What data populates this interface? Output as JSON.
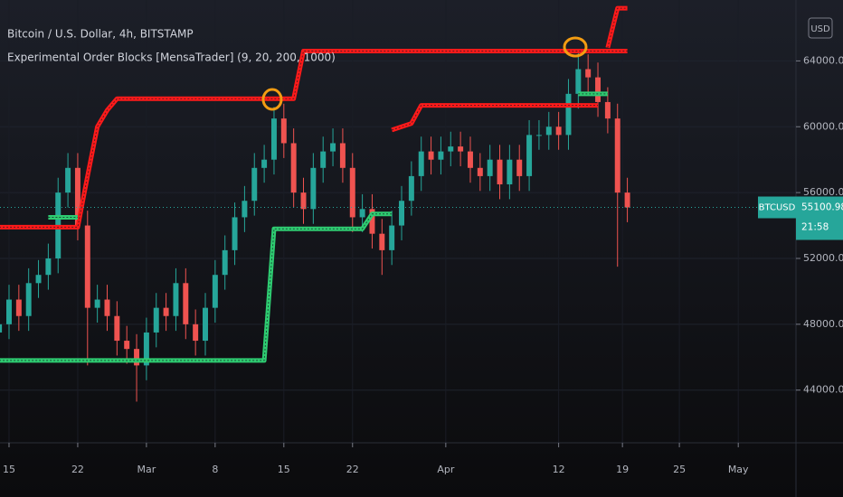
{
  "chart_data": {
    "type": "candlestick",
    "title": "Bitcoin / U.S. Dollar, 4h, BITSTAMP",
    "subtitle": "Experimental Order Blocks [MensaTrader] (9, 20, 200, 1000)",
    "currency": "USD",
    "symbol": "BTCUSD",
    "last_price": 55100.98,
    "countdown": "21:58",
    "up_color": "#26a69a",
    "down_color": "#ef5350",
    "xlim": [
      -0.92,
      80.18
    ],
    "ylim": [
      40800,
      67700
    ],
    "xticks": [
      {
        "value": 0,
        "label": "15"
      },
      {
        "value": 7,
        "label": "22"
      },
      {
        "value": 14,
        "label": "Mar"
      },
      {
        "value": 21,
        "label": "8"
      },
      {
        "value": 28,
        "label": "15"
      },
      {
        "value": 35,
        "label": "22"
      },
      {
        "value": 44.5,
        "label": "Apr"
      },
      {
        "value": 56,
        "label": "12"
      },
      {
        "value": 62.5,
        "label": "19"
      },
      {
        "value": 68.3,
        "label": "25"
      },
      {
        "value": 74.3,
        "label": "May"
      }
    ],
    "yticks": [
      {
        "value": 44000,
        "label": "44000.00"
      },
      {
        "value": 48000,
        "label": "48000.00"
      },
      {
        "value": 52000,
        "label": "52000.00"
      },
      {
        "value": 56000,
        "label": "56000.00"
      },
      {
        "value": 60000,
        "label": "60000.00"
      },
      {
        "value": 64000,
        "label": "64000.00"
      }
    ],
    "x": [
      -1,
      0,
      1,
      2,
      3,
      4,
      5,
      6,
      7,
      8,
      9,
      10,
      11,
      12,
      13,
      14,
      15,
      16,
      17,
      18,
      19,
      20,
      21,
      22,
      23,
      24,
      25,
      26,
      27,
      28,
      29,
      30,
      31,
      32,
      33,
      34,
      35,
      36,
      37,
      38,
      39,
      40,
      41,
      42,
      43,
      44,
      45,
      46,
      47,
      48,
      49,
      50,
      51,
      52,
      53,
      54,
      55,
      56,
      57,
      58,
      59,
      60,
      61,
      62,
      63
    ],
    "open": [
      47500,
      48000,
      49500,
      48500,
      50500,
      51000,
      52000,
      56000,
      57500,
      54000,
      49000,
      49500,
      48500,
      47000,
      46500,
      45500,
      47500,
      49000,
      48500,
      50500,
      48000,
      47000,
      49000,
      51000,
      52500,
      54500,
      55500,
      57500,
      58000,
      60500,
      59000,
      56000,
      55000,
      57500,
      58500,
      59000,
      57500,
      54500,
      55000,
      53500,
      52500,
      54000,
      55500,
      57000,
      58500,
      58000,
      58500,
      58800,
      58500,
      57500,
      57000,
      58000,
      56500,
      58000,
      57000,
      59500,
      59500,
      60000,
      59500,
      62000,
      63500,
      63000,
      61500,
      60500,
      56000
    ],
    "high": [
      48900,
      50400,
      50400,
      51400,
      51900,
      52900,
      56900,
      58400,
      58400,
      54900,
      50400,
      50400,
      49400,
      47900,
      47400,
      48400,
      49900,
      49900,
      51400,
      51400,
      48900,
      49900,
      51900,
      53400,
      55400,
      56400,
      58400,
      58900,
      61200,
      61400,
      59900,
      56900,
      58400,
      59400,
      59900,
      59900,
      58400,
      55900,
      55900,
      54400,
      54900,
      56400,
      57900,
      59400,
      59400,
      59400,
      59700,
      59700,
      59400,
      58400,
      58900,
      58900,
      58900,
      58900,
      60400,
      60400,
      60900,
      60900,
      62900,
      64500,
      64400,
      63900,
      62400,
      61400,
      56900
    ],
    "low": [
      46600,
      47100,
      47600,
      47600,
      49600,
      50100,
      51100,
      55100,
      53100,
      45500,
      48100,
      47600,
      46100,
      45600,
      43300,
      44600,
      46600,
      47600,
      47600,
      47100,
      46100,
      46100,
      48100,
      50100,
      51600,
      53600,
      54600,
      56600,
      57100,
      58100,
      55100,
      54100,
      54100,
      56600,
      57600,
      56600,
      53600,
      53600,
      52600,
      51000,
      51600,
      53100,
      54600,
      56100,
      57100,
      57100,
      57600,
      57600,
      56600,
      56100,
      56100,
      55600,
      55600,
      56100,
      56100,
      58600,
      58600,
      58600,
      58600,
      61100,
      62100,
      60600,
      59600,
      51500,
      54200
    ],
    "close": [
      48000,
      49500,
      48500,
      50500,
      51000,
      52000,
      56000,
      57500,
      54000,
      49000,
      49500,
      48500,
      47000,
      46500,
      45500,
      47500,
      49000,
      48500,
      50500,
      48000,
      47000,
      49000,
      51000,
      52500,
      54500,
      55500,
      57500,
      58000,
      60500,
      59000,
      56000,
      55000,
      57500,
      58500,
      59000,
      57500,
      54500,
      55000,
      53500,
      52500,
      54000,
      55500,
      57000,
      58500,
      58000,
      58500,
      58800,
      58500,
      57500,
      57000,
      58000,
      56500,
      58000,
      57000,
      59500,
      59500,
      60000,
      59500,
      62000,
      63500,
      63000,
      61500,
      60500,
      56000,
      55100
    ],
    "blocks": [
      {
        "color": "#ff1a1a",
        "values": [
          53900,
          53900,
          53900,
          53900,
          53900,
          53900,
          53900,
          53900,
          53900,
          57000,
          60000,
          61000,
          61700,
          61700,
          61700,
          61700,
          61700,
          61700,
          61700,
          61700,
          61700,
          61700,
          61700,
          61700,
          61700,
          61700,
          61700,
          61700,
          61700,
          61700,
          61700,
          64600,
          64600,
          64600,
          64600,
          64600,
          64600,
          64600,
          64600,
          64600,
          64600,
          64600,
          64600,
          64600,
          64600,
          64600,
          64600,
          64600,
          64600,
          64600,
          64600,
          64600,
          64600,
          64600,
          64600,
          64600,
          64600,
          64600,
          64600,
          64600,
          64600,
          64600,
          64600,
          64600,
          64600
        ]
      },
      {
        "color": "#ff1a1a",
        "values": [
          null,
          null,
          null,
          null,
          null,
          null,
          null,
          null,
          null,
          null,
          null,
          null,
          null,
          null,
          null,
          null,
          null,
          null,
          null,
          null,
          null,
          null,
          null,
          null,
          null,
          null,
          null,
          null,
          null,
          null,
          null,
          null,
          null,
          null,
          null,
          null,
          null,
          null,
          null,
          null,
          59800,
          60000,
          60200,
          61300,
          61300,
          61300,
          61300,
          61300,
          61300,
          61300,
          61300,
          61300,
          61300,
          61300,
          61300,
          61300,
          61300,
          61300,
          61300,
          61300,
          61300,
          61300,
          null,
          null,
          null
        ]
      },
      {
        "color": "#ff1a1a",
        "values": [
          null,
          null,
          null,
          null,
          null,
          null,
          null,
          null,
          null,
          null,
          null,
          null,
          null,
          null,
          null,
          null,
          null,
          null,
          null,
          null,
          null,
          null,
          null,
          null,
          null,
          null,
          null,
          null,
          null,
          null,
          null,
          null,
          null,
          null,
          null,
          null,
          null,
          null,
          null,
          null,
          null,
          null,
          null,
          null,
          null,
          null,
          null,
          null,
          null,
          null,
          null,
          null,
          null,
          null,
          null,
          null,
          null,
          null,
          null,
          null,
          null,
          null,
          64800,
          67200,
          67200
        ]
      },
      {
        "color": "#2ecc71",
        "values": [
          45800,
          45800,
          45800,
          45800,
          45800,
          45800,
          45800,
          45800,
          45800,
          45800,
          45800,
          45800,
          45800,
          45800,
          45800,
          45800,
          45800,
          45800,
          45800,
          45800,
          45800,
          45800,
          45800,
          45800,
          45800,
          45800,
          45800,
          45800,
          53800,
          53800,
          53800,
          53800,
          53800,
          53800,
          53800,
          53800,
          53800,
          53800,
          54700,
          54700,
          54700,
          null,
          null,
          null,
          null,
          null,
          null,
          null,
          null,
          null,
          null,
          null,
          null,
          null,
          null,
          null,
          null,
          null,
          null,
          null,
          null,
          null,
          null,
          null,
          null
        ]
      },
      {
        "color": "#2ecc71",
        "values": [
          null,
          null,
          null,
          null,
          null,
          54500,
          54500,
          54500,
          54500,
          null,
          null,
          null,
          null,
          null,
          null,
          null,
          null,
          null,
          null,
          null,
          null,
          null,
          null,
          null,
          null,
          null,
          null,
          null,
          null,
          null,
          null,
          null,
          null,
          null,
          null,
          null,
          null,
          null,
          null,
          null,
          null,
          null,
          null,
          null,
          null,
          null,
          null,
          null,
          null,
          null,
          null,
          null,
          null,
          null,
          null,
          null,
          null,
          null,
          null,
          null,
          null,
          null,
          null,
          null,
          null
        ]
      },
      {
        "color": "#2ecc71",
        "values": [
          null,
          null,
          null,
          null,
          null,
          null,
          null,
          null,
          null,
          null,
          null,
          null,
          null,
          null,
          null,
          null,
          null,
          null,
          null,
          null,
          null,
          null,
          null,
          null,
          null,
          null,
          null,
          null,
          null,
          null,
          null,
          null,
          null,
          null,
          null,
          null,
          null,
          null,
          null,
          null,
          null,
          null,
          null,
          null,
          null,
          null,
          null,
          null,
          null,
          null,
          null,
          null,
          null,
          null,
          null,
          null,
          null,
          null,
          null,
          62000,
          62000,
          62000,
          62000,
          null,
          null
        ]
      }
    ]
  }
}
